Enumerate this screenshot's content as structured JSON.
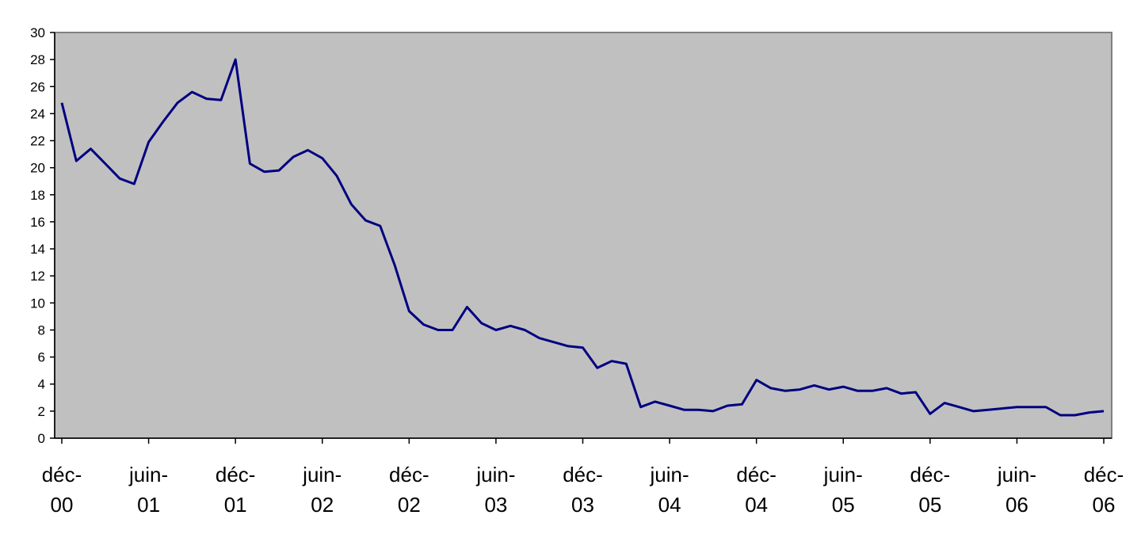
{
  "chart_data": {
    "type": "line",
    "title": "",
    "xlabel": "",
    "ylabel": "",
    "ylim": [
      0,
      30
    ],
    "yticks": [
      0,
      2,
      4,
      6,
      8,
      10,
      12,
      14,
      16,
      18,
      20,
      22,
      24,
      26,
      28,
      30
    ],
    "grid": false,
    "legend": "none",
    "colors": {
      "line": "#000080",
      "plot_bg": "#C0C0C0",
      "axis": "#000000",
      "frame": "#808080"
    },
    "x_tick_labels": [
      [
        "déc-",
        "00"
      ],
      [
        "juin-",
        "01"
      ],
      [
        "déc-",
        "01"
      ],
      [
        "juin-",
        "02"
      ],
      [
        "déc-",
        "02"
      ],
      [
        "juin-",
        "03"
      ],
      [
        "déc-",
        "03"
      ],
      [
        "juin-",
        "04"
      ],
      [
        "déc-",
        "04"
      ],
      [
        "juin-",
        "05"
      ],
      [
        "déc-",
        "05"
      ],
      [
        "juin-",
        "06"
      ],
      [
        "déc-",
        "06"
      ]
    ],
    "series": [
      {
        "values": [
          24.8,
          20.5,
          21.4,
          20.3,
          19.2,
          18.8,
          21.9,
          23.4,
          24.8,
          25.6,
          25.1,
          25.0,
          28.0,
          20.3,
          19.7,
          19.8,
          20.8,
          21.3,
          20.7,
          19.4,
          17.3,
          16.1,
          15.7,
          12.8,
          9.4,
          8.4,
          8.0,
          8.0,
          9.7,
          8.5,
          8.0,
          8.3,
          8.0,
          7.4,
          7.1,
          6.8,
          6.7,
          5.2,
          5.7,
          5.5,
          2.3,
          2.7,
          2.4,
          2.1,
          2.1,
          2.0,
          2.4,
          2.5,
          4.3,
          3.7,
          3.5,
          3.6,
          3.9,
          3.6,
          3.8,
          3.5,
          3.5,
          3.7,
          3.3,
          3.4,
          1.8,
          2.6,
          2.3,
          2.0,
          2.1,
          2.2,
          2.3,
          2.3,
          2.3,
          1.7,
          1.7,
          1.9,
          2.0
        ]
      }
    ]
  }
}
